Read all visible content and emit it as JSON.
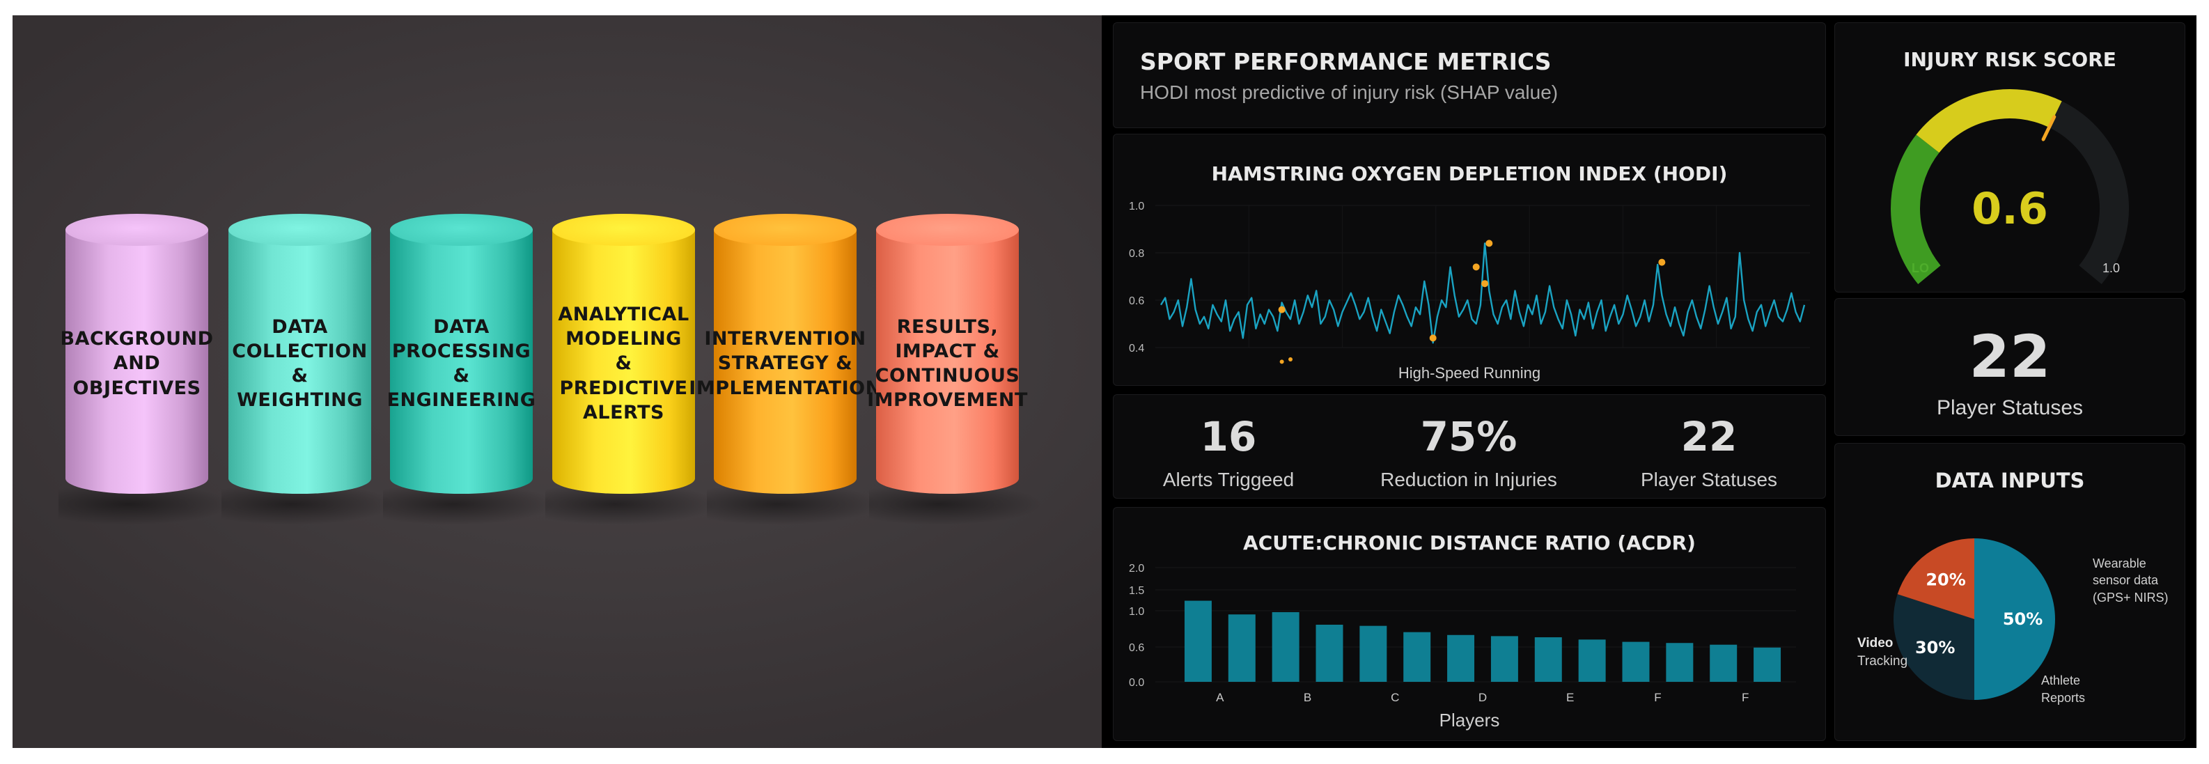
{
  "colors": {
    "accent_teal": "#0f7f93",
    "line": "#1aa3c2",
    "peak_dot": "#f5a623",
    "gauge_green": "#3f9c22",
    "gauge_yellow": "#d7cc1c",
    "pie_blue": "#0d7d97",
    "pie_navy": "#102a36",
    "pie_red": "#c84a25"
  },
  "pillars": [
    {
      "label": "BACKGROUND\nAND\nOBJECTIVES",
      "color": "#d7a6dc"
    },
    {
      "label": "DATA\nCOLLECTION\n&\nWEIGHTING",
      "color": "#62d6c4"
    },
    {
      "label": "DATA\nPROCESSING\n&\nENGINEERING",
      "color": "#3cc6b3"
    },
    {
      "label": "ANALYTICAL\nMODELING\n& PREDICTIVE\nALERTS",
      "color": "#ffd51f"
    },
    {
      "label": "INTERVENTION\nSTRATEGY &\nIMPLEMENTATION",
      "color": "#ffa41f"
    },
    {
      "label": "RESULTS,\nIMPACT &\nCONTINUOUS\nIMPROVEMENT",
      "color": "#ff8268"
    }
  ],
  "dashboard": {
    "title": "SPORT PERFORMANCE METRICS",
    "subtitle": "HODI most predictive of injury risk (SHAP value)",
    "hodi": {
      "title": "HAMSTRING OXYGEN DEPLETION INDEX (HODI)",
      "caption": "High-Speed Running"
    },
    "stats": [
      {
        "value": "16",
        "label": "Alerts Triggeed"
      },
      {
        "value": "75%",
        "label": "Reduction in Injuries"
      },
      {
        "value": "22",
        "label": "Player Statuses"
      }
    ],
    "acdr": {
      "title": "ACUTE:CHRONIC DISTANCE RATIO (ACDR)",
      "xlabel": "Players"
    },
    "risk": {
      "title": "INJURY RISK SCORE",
      "value": "0.6",
      "lo_label": "LO",
      "hi_label": "1.0",
      "score": 0.6
    },
    "player_statuses": {
      "value": "22",
      "label": "Player Statuses"
    },
    "data_inputs": {
      "title": "DATA INPUTS",
      "slices": [
        {
          "pct": "50%",
          "label_bold": "Video",
          "label_rest": "Tracking",
          "value": 50
        },
        {
          "pct": "30%",
          "label": "Wearable\nsensor data\n(GPS+ NIRS)",
          "value": 30
        },
        {
          "pct": "20%",
          "label": "Athlete\nReports",
          "value": 20
        }
      ]
    }
  },
  "chart_data": [
    {
      "type": "line",
      "title": "HAMSTRING OXYGEN DEPLETION INDEX (HODI)",
      "xlabel": "High-Speed Running",
      "ylabel": "",
      "ylim": [
        0.4,
        1.0
      ],
      "yticks": [
        "1.0",
        "0.8",
        "0.6",
        "0.4"
      ],
      "grid": true,
      "series": [
        {
          "values": [
            0.58,
            0.61,
            0.52,
            0.55,
            0.6,
            0.49,
            0.57,
            0.69,
            0.56,
            0.5,
            0.53,
            0.48,
            0.58,
            0.54,
            0.51,
            0.6,
            0.47,
            0.52,
            0.55,
            0.44,
            0.58,
            0.61,
            0.48,
            0.54,
            0.5,
            0.56,
            0.53,
            0.47,
            0.59,
            0.55,
            0.52,
            0.6,
            0.5,
            0.55,
            0.62,
            0.57,
            0.64,
            0.5,
            0.53,
            0.6,
            0.56,
            0.49,
            0.55,
            0.59,
            0.63,
            0.58,
            0.52,
            0.55,
            0.61,
            0.53,
            0.47,
            0.56,
            0.51,
            0.46,
            0.55,
            0.62,
            0.58,
            0.53,
            0.49,
            0.57,
            0.54,
            0.68,
            0.58,
            0.42,
            0.53,
            0.6,
            0.57,
            0.74,
            0.62,
            0.53,
            0.56,
            0.6,
            0.52,
            0.5,
            0.58,
            0.84,
            0.64,
            0.54,
            0.5,
            0.57,
            0.6,
            0.52,
            0.64,
            0.55,
            0.49,
            0.58,
            0.54,
            0.62,
            0.5,
            0.55,
            0.66,
            0.57,
            0.52,
            0.48,
            0.6,
            0.54,
            0.45,
            0.56,
            0.52,
            0.59,
            0.48,
            0.55,
            0.6,
            0.47,
            0.53,
            0.58,
            0.5,
            0.54,
            0.62,
            0.56,
            0.49,
            0.53,
            0.6,
            0.51,
            0.58,
            0.75,
            0.62,
            0.54,
            0.49,
            0.57,
            0.5,
            0.45,
            0.55,
            0.6,
            0.53,
            0.48,
            0.56,
            0.66,
            0.57,
            0.5,
            0.55,
            0.61,
            0.48,
            0.53,
            0.8,
            0.6,
            0.52,
            0.47,
            0.55,
            0.58,
            0.49,
            0.55,
            0.6,
            0.53,
            0.51,
            0.56,
            0.63,
            0.55,
            0.51,
            0.58
          ]
        },
        {
          "name": "",
          "points": [
            [
              28,
              0.34
            ],
            [
              30,
              0.35
            ]
          ]
        }
      ],
      "highlights": [
        [
          28,
          0.56
        ],
        [
          63,
          0.44
        ],
        [
          73,
          0.74
        ],
        [
          75,
          0.67
        ],
        [
          76,
          0.84
        ],
        [
          116,
          0.76
        ]
      ]
    },
    {
      "type": "bar",
      "title": "ACUTE:CHRONIC DISTANCE RATIO (ACDR)",
      "xlabel": "Players",
      "ylabel": "",
      "ylim": [
        0.0,
        2.0
      ],
      "yticks": [
        "2.0",
        "1.5",
        "1.0",
        "0.6",
        "0.0"
      ],
      "categories": [
        "",
        "A",
        "",
        "B",
        "",
        "C",
        "",
        "D",
        "",
        "E",
        "",
        "F",
        "",
        "F"
      ],
      "values": [
        1.42,
        1.18,
        1.22,
        1.0,
        0.98,
        0.87,
        0.82,
        0.8,
        0.78,
        0.74,
        0.7,
        0.68,
        0.65,
        0.6
      ]
    },
    {
      "type": "pie",
      "title": "DATA INPUTS",
      "labels": [
        "Video Tracking",
        "Wearable sensor data (GPS+ NIRS)",
        "Athlete Reports"
      ],
      "values": [
        50,
        30,
        20
      ]
    }
  ]
}
